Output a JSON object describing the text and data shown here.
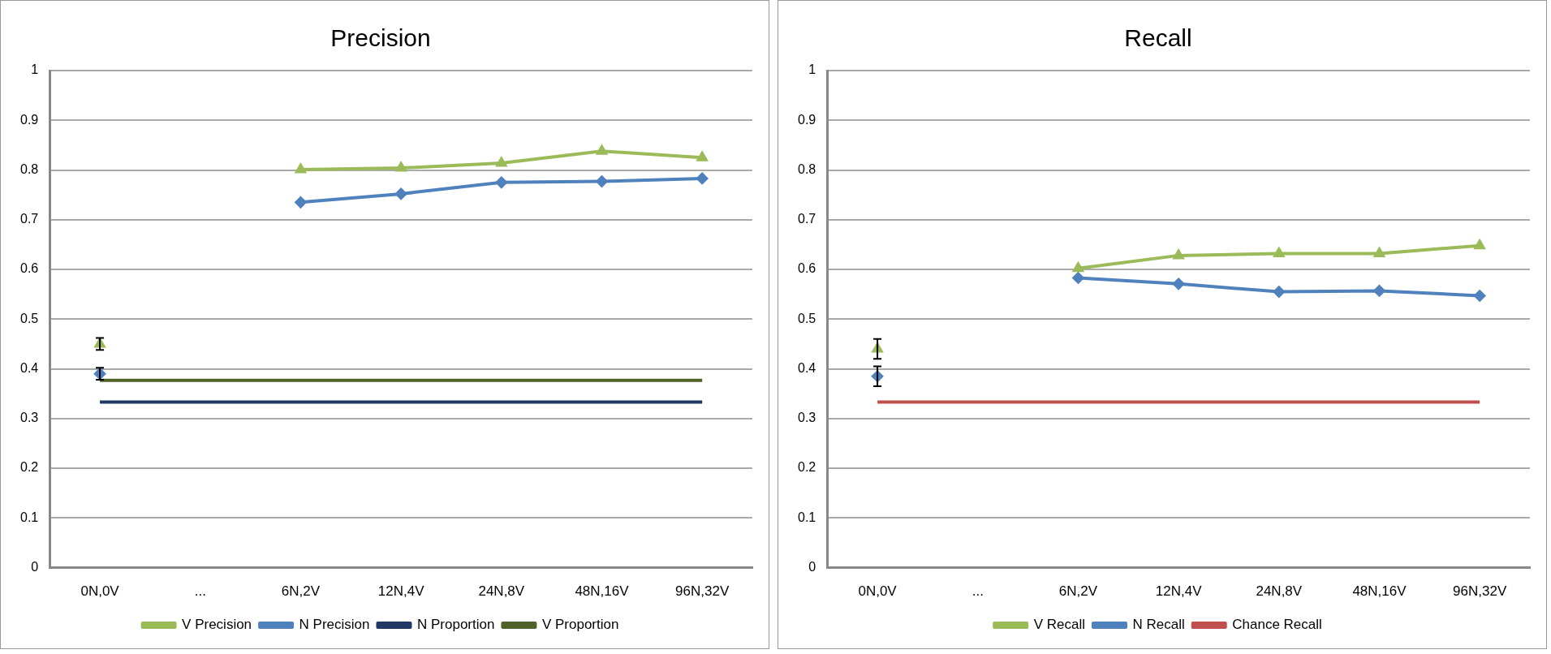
{
  "chart_data": [
    {
      "type": "line",
      "title": "Precision",
      "categories": [
        "0N,0V",
        "...",
        "6N,2V",
        "12N,4V",
        "24N,8V",
        "48N,16V",
        "96N,32V"
      ],
      "ylim": [
        0,
        1
      ],
      "yticks": [
        0,
        0.1,
        0.2,
        0.3,
        0.4,
        0.5,
        0.6,
        0.7,
        0.8,
        0.9,
        1
      ],
      "grid": "y",
      "legend": "bottom",
      "series": [
        {
          "name": "V Precision",
          "color": "#9bbb59",
          "marker": "triangle",
          "values": [
            0.45,
            null,
            0.801,
            0.804,
            0.814,
            0.838,
            0.825
          ],
          "errors": [
            0.012,
            null,
            null,
            null,
            null,
            null,
            null
          ]
        },
        {
          "name": "N Precision",
          "color": "#4f81bd",
          "marker": "diamond",
          "values": [
            0.39,
            null,
            0.735,
            0.752,
            0.775,
            0.777,
            0.783
          ],
          "errors": [
            0.012,
            null,
            null,
            null,
            null,
            null,
            null
          ]
        },
        {
          "name": "N Proportion",
          "color": "#1f3864",
          "marker": "none",
          "values": [
            0.333,
            0.333,
            0.333,
            0.333,
            0.333,
            0.333,
            0.333
          ]
        },
        {
          "name": "V Proportion",
          "color": "#4f6228",
          "marker": "none",
          "values": [
            0.377,
            0.377,
            0.377,
            0.377,
            0.377,
            0.377,
            0.377
          ]
        }
      ]
    },
    {
      "type": "line",
      "title": "Recall",
      "categories": [
        "0N,0V",
        "...",
        "6N,2V",
        "12N,4V",
        "24N,8V",
        "48N,16V",
        "96N,32V"
      ],
      "ylim": [
        0,
        1
      ],
      "yticks": [
        0,
        0.1,
        0.2,
        0.3,
        0.4,
        0.5,
        0.6,
        0.7,
        0.8,
        0.9,
        1
      ],
      "grid": "y",
      "legend": "bottom",
      "series": [
        {
          "name": "V Recall",
          "color": "#9bbb59",
          "marker": "triangle",
          "values": [
            0.44,
            null,
            0.602,
            0.628,
            0.632,
            0.632,
            0.648
          ],
          "errors": [
            0.02,
            null,
            null,
            null,
            null,
            null,
            null
          ]
        },
        {
          "name": "N Recall",
          "color": "#4f81bd",
          "marker": "diamond",
          "values": [
            0.385,
            null,
            0.583,
            0.571,
            0.555,
            0.557,
            0.547
          ],
          "errors": [
            0.02,
            null,
            null,
            null,
            null,
            null,
            null
          ]
        },
        {
          "name": "Chance Recall",
          "color": "#c0504d",
          "marker": "none",
          "values": [
            0.333,
            0.333,
            0.333,
            0.333,
            0.333,
            0.333,
            0.333
          ]
        }
      ]
    }
  ]
}
